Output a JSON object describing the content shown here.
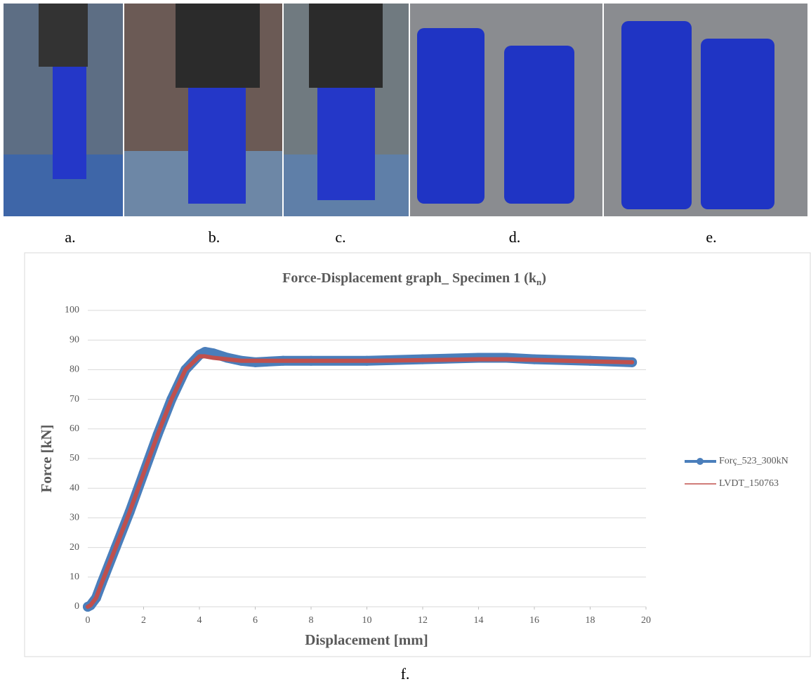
{
  "photo_labels": [
    "a.",
    "b.",
    "c.",
    "d.",
    "e."
  ],
  "figure_label": "f.",
  "chart_data": {
    "type": "line",
    "title": "Force-Displacement graph_ Specimen 1 (k",
    "title_subscript": "n",
    "title_end": ")",
    "x_label": "Displacement [mm]",
    "y_label": "Force [kN]",
    "x": [
      0,
      0.1,
      0.3,
      0.5,
      1,
      1.5,
      2,
      2.5,
      3,
      3.5,
      4,
      4.2,
      4.5,
      5,
      5.5,
      6,
      7,
      8,
      10,
      12,
      14,
      15,
      16,
      18,
      19.5
    ],
    "series": [
      {
        "name": "Forç_523_300kN",
        "color": "#4a7ebb",
        "values": [
          0,
          0.5,
          3,
          8,
          20,
          32,
          45,
          58,
          70,
          80,
          85,
          86,
          85.5,
          84,
          83,
          82.5,
          83,
          83,
          83,
          83.5,
          84,
          84,
          83.5,
          83,
          82.5
        ]
      },
      {
        "name": "LVDT_150763",
        "color": "#c0504d",
        "values": [
          0,
          0.5,
          3,
          8,
          20,
          32,
          45,
          58,
          70,
          80,
          84.5,
          84.5,
          84,
          83.5,
          83,
          83,
          83,
          83,
          83,
          83.2,
          83.5,
          83.5,
          83.3,
          82.8,
          82.5
        ]
      }
    ],
    "xlim": [
      0,
      20
    ],
    "xticks": [
      0,
      2,
      4,
      6,
      8,
      10,
      12,
      14,
      16,
      18,
      20
    ],
    "ylim": [
      0,
      100
    ],
    "yticks": [
      0,
      10,
      20,
      30,
      40,
      50,
      60,
      70,
      80,
      90,
      100
    ],
    "grid": true,
    "legend": "right"
  }
}
